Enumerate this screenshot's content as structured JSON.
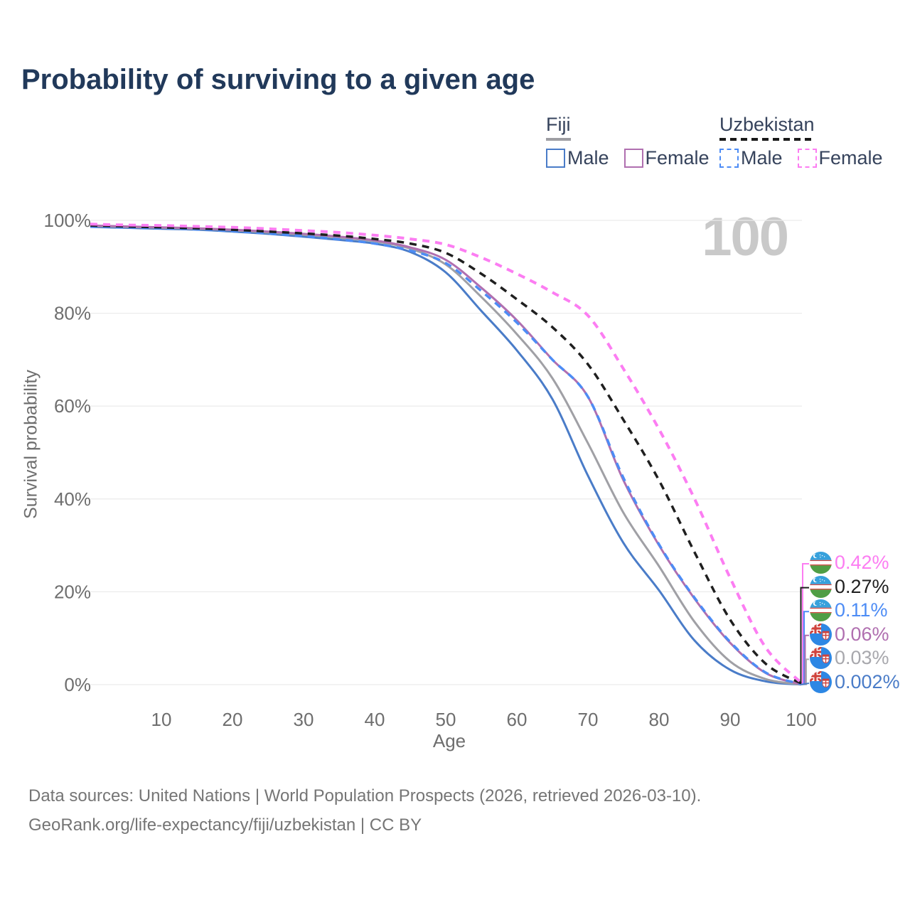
{
  "title": "Probability of surviving to a given age",
  "watermark": "100",
  "legend": {
    "groups": [
      {
        "label": "Fiji",
        "underline_style": "solid",
        "underline_color": "#9e9ea3",
        "items": [
          {
            "label": "Male",
            "color": "#4a7cc8",
            "dashed": false
          },
          {
            "label": "Female",
            "color": "#b06fb0",
            "dashed": false
          }
        ]
      },
      {
        "label": "Uzbekistan",
        "underline_style": "dashed",
        "underline_color": "#1a1a1a",
        "items": [
          {
            "label": "Male",
            "color": "#4d8cf5",
            "dashed": true
          },
          {
            "label": "Female",
            "color": "#fc7df2",
            "dashed": true
          }
        ]
      }
    ]
  },
  "chart_data": {
    "type": "line",
    "xlabel": "Age",
    "ylabel": "Survival probability",
    "xlim": [
      0,
      100
    ],
    "ylim": [
      0,
      100
    ],
    "grid": "horizontal",
    "gridline_color": "#ececec",
    "tick_color": "#6e6e6e",
    "x_ticks": [
      10,
      20,
      30,
      40,
      50,
      60,
      70,
      80,
      90,
      100
    ],
    "y_ticks": [
      {
        "value": 0,
        "label": "0%"
      },
      {
        "value": 20,
        "label": "20%"
      },
      {
        "value": 40,
        "label": "40%"
      },
      {
        "value": 60,
        "label": "60%"
      },
      {
        "value": 80,
        "label": "80%"
      },
      {
        "value": 100,
        "label": "100%"
      }
    ],
    "ages": [
      0,
      5,
      10,
      15,
      20,
      25,
      30,
      35,
      40,
      45,
      50,
      55,
      60,
      65,
      70,
      75,
      80,
      85,
      90,
      95,
      100
    ],
    "series": [
      {
        "id": "fiji-male",
        "name": "Fiji Male",
        "color": "#4a7cc8",
        "line_style": "solid",
        "stroke_width": 3,
        "values": [
          98.6,
          98.4,
          98.2,
          98.0,
          97.6,
          97.1,
          96.5,
          95.8,
          95.0,
          93.2,
          88.8,
          80.5,
          72.0,
          61.5,
          45.0,
          30.5,
          20.3,
          9.5,
          3.2,
          0.7,
          0.002
        ],
        "end_label": "0.002%"
      },
      {
        "id": "fiji-total",
        "name": "Fiji",
        "color": "#a0a0a5",
        "line_style": "solid",
        "stroke_width": 3,
        "values": [
          98.8,
          98.6,
          98.4,
          98.2,
          97.9,
          97.4,
          96.9,
          96.3,
          95.5,
          93.9,
          90.5,
          83.5,
          75.5,
          66.0,
          52.0,
          37.0,
          25.5,
          13.5,
          5.0,
          1.2,
          0.03
        ],
        "end_label": "0.03%"
      },
      {
        "id": "fiji-female",
        "name": "Fiji Female",
        "color": "#b06fb0",
        "line_style": "solid",
        "stroke_width": 3,
        "values": [
          98.9,
          98.7,
          98.5,
          98.3,
          98.0,
          97.6,
          97.1,
          96.5,
          95.7,
          94.2,
          91.5,
          85.5,
          78.5,
          70.0,
          62.0,
          44.0,
          30.0,
          18.5,
          9.0,
          2.5,
          0.06
        ],
        "end_label": "0.06%"
      },
      {
        "id": "uzbekistan-male",
        "name": "Uzbekistan Male",
        "color": "#4d8cf5",
        "line_style": "dashed",
        "stroke_width": 3.5,
        "values": [
          98.7,
          98.5,
          98.3,
          98.1,
          97.7,
          97.2,
          96.6,
          95.9,
          95.0,
          93.5,
          90.8,
          84.8,
          78.0,
          70.0,
          62.0,
          44.5,
          30.2,
          18.7,
          9.2,
          2.6,
          0.11
        ],
        "end_label": "0.11%"
      },
      {
        "id": "uzbekistan-total",
        "name": "Uzbekistan",
        "color": "#1f1f1f",
        "line_style": "dashed",
        "stroke_width": 3.5,
        "values": [
          98.9,
          98.7,
          98.5,
          98.3,
          98.0,
          97.6,
          97.2,
          96.7,
          96.0,
          95.0,
          93.0,
          88.5,
          83.0,
          77.0,
          69.0,
          57.0,
          44.0,
          28.5,
          14.0,
          4.5,
          0.27
        ],
        "end_label": "0.27%"
      },
      {
        "id": "uzbekistan-female",
        "name": "Uzbekistan Female",
        "color": "#fc7df2",
        "line_style": "dashed",
        "stroke_width": 4,
        "values": [
          99.2,
          99.0,
          98.9,
          98.7,
          98.5,
          98.2,
          97.8,
          97.4,
          96.8,
          96.0,
          94.8,
          92.0,
          88.5,
          84.5,
          79.5,
          68.0,
          55.0,
          40.0,
          23.0,
          8.0,
          0.42
        ],
        "end_label": "0.42%"
      }
    ]
  },
  "end_labels": [
    {
      "text": "0.42%",
      "color": "#fc7df2",
      "flag": "uzbekistan",
      "series": "uzbekistan-female"
    },
    {
      "text": "0.27%",
      "color": "#1f1f1f",
      "flag": "uzbekistan",
      "series": "uzbekistan-total"
    },
    {
      "text": "0.11%",
      "color": "#4d8cf5",
      "flag": "uzbekistan",
      "series": "uzbekistan-male"
    },
    {
      "text": "0.06%",
      "color": "#b06fb0",
      "flag": "fiji",
      "series": "fiji-female"
    },
    {
      "text": "0.03%",
      "color": "#a8a8ad",
      "flag": "fiji",
      "series": "fiji-total"
    },
    {
      "text": "0.002%",
      "color": "#4a7cc8",
      "flag": "fiji",
      "series": "fiji-male"
    }
  ],
  "footer": {
    "line1": "Data sources: United Nations | World Population Prospects (2026, retrieved 2026-03-10).",
    "line2": "GeoRank.org/life-expectancy/fiji/uzbekistan | CC BY"
  }
}
